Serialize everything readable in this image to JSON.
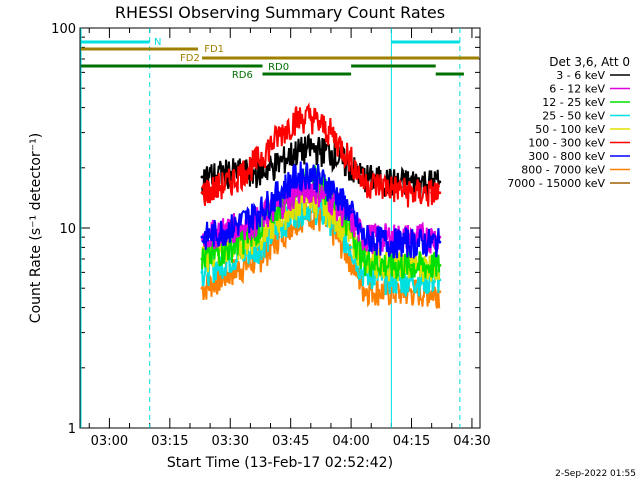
{
  "footer_date": "2-Sep-2022 01:55",
  "legend": {
    "header": "Det 3,6, Att 0",
    "entries": [
      {
        "label": "3 - 6 keV",
        "color": "#000000"
      },
      {
        "label": "6 - 12 keV",
        "color": "#e000e0"
      },
      {
        "label": "12 - 25 keV",
        "color": "#00e000"
      },
      {
        "label": "25 - 50 keV",
        "color": "#00e0e0"
      },
      {
        "label": "50 - 100 keV",
        "color": "#e0e000"
      },
      {
        "label": "100 - 300 keV",
        "color": "#ff0000"
      },
      {
        "label": "300 - 800 keV",
        "color": "#0000ff"
      },
      {
        "label": "800 - 7000 keV",
        "color": "#ff8000"
      },
      {
        "label": "7000 - 15000 keV",
        "color": "#a06000"
      }
    ]
  },
  "chart_data": {
    "type": "line",
    "title": "RHESSI Observing Summary Count Rates",
    "xlabel": "Start Time (13-Feb-17 02:52:42)",
    "ylabel": "Count Rate (s⁻¹ detector⁻¹)",
    "yscale": "log",
    "ylim": [
      1,
      100
    ],
    "xlim": [
      "02:52:42",
      "04:32"
    ],
    "y_ticks": [
      "1",
      "10",
      "100"
    ],
    "x_ticks": [
      "03:00",
      "03:15",
      "03:30",
      "03:45",
      "04:00",
      "04:15",
      "04:30"
    ],
    "grid": false,
    "legend_position": "right",
    "series": [
      {
        "name": "3 - 6 keV",
        "color": "#000000",
        "x": [
          "03:23",
          "03:30",
          "03:37",
          "03:42",
          "03:46",
          "03:50",
          "03:55",
          "04:00",
          "04:03",
          "04:10",
          "04:15",
          "04:20",
          "04:22"
        ],
        "values": [
          18,
          19,
          19,
          21,
          24,
          25,
          24,
          20,
          18,
          17,
          17,
          17,
          17
        ]
      },
      {
        "name": "6 - 12 keV",
        "color": "#e000e0",
        "x": [
          "03:23",
          "03:30",
          "03:37",
          "03:42",
          "03:46",
          "03:50",
          "03:55",
          "04:00",
          "04:03",
          "04:10",
          "04:15",
          "04:20",
          "04:22"
        ],
        "values": [
          9,
          10,
          11,
          13,
          15,
          16,
          14,
          11,
          9,
          9,
          9,
          9,
          9
        ]
      },
      {
        "name": "12 - 25 keV",
        "color": "#00e000",
        "x": [
          "03:23",
          "03:30",
          "03:37",
          "03:42",
          "03:46",
          "03:50",
          "03:55",
          "04:00",
          "04:03",
          "04:10",
          "04:15",
          "04:20",
          "04:22"
        ],
        "values": [
          7,
          8,
          10,
          13,
          16,
          18,
          15,
          10,
          7,
          6.5,
          6.5,
          6.5,
          6.5
        ]
      },
      {
        "name": "25 - 50 keV",
        "color": "#00e0e0",
        "x": [
          "03:23",
          "03:30",
          "03:37",
          "03:42",
          "03:46",
          "03:50",
          "03:55",
          "04:00",
          "04:03",
          "04:10",
          "04:15",
          "04:20",
          "04:22"
        ],
        "values": [
          6,
          7,
          8,
          10,
          12,
          13,
          11,
          8,
          6,
          5.5,
          5.5,
          5.5,
          5.5
        ]
      },
      {
        "name": "50 - 100 keV",
        "color": "#e0e000",
        "x": [
          "03:23",
          "03:30",
          "03:37",
          "03:42",
          "03:46",
          "03:50",
          "03:55",
          "04:00",
          "04:03",
          "04:10",
          "04:15",
          "04:20",
          "04:22"
        ],
        "values": [
          7,
          8,
          9,
          11,
          13,
          14,
          12,
          9,
          7,
          6.5,
          6.5,
          6.5,
          6.5
        ]
      },
      {
        "name": "100 - 300 keV",
        "color": "#ff0000",
        "x": [
          "03:23",
          "03:30",
          "03:37",
          "03:42",
          "03:46",
          "03:50",
          "03:55",
          "04:00",
          "04:03",
          "04:10",
          "04:15",
          "04:20",
          "04:22"
        ],
        "values": [
          15,
          17,
          22,
          29,
          35,
          36,
          30,
          22,
          17,
          16,
          15,
          15,
          15
        ]
      },
      {
        "name": "300 - 800 keV",
        "color": "#0000ff",
        "x": [
          "03:23",
          "03:30",
          "03:37",
          "03:42",
          "03:46",
          "03:50",
          "03:55",
          "04:00",
          "04:03",
          "04:10",
          "04:15",
          "04:20",
          "04:22"
        ],
        "values": [
          9,
          10,
          12,
          15,
          18,
          19,
          16,
          12,
          9,
          8.5,
          8.5,
          8.5,
          8.5
        ]
      },
      {
        "name": "800 - 7000 keV",
        "color": "#ff8000",
        "x": [
          "03:23",
          "03:30",
          "03:37",
          "03:42",
          "03:46",
          "03:50",
          "03:55",
          "04:00",
          "04:03",
          "04:10",
          "04:15",
          "04:20",
          "04:22"
        ],
        "values": [
          5,
          6,
          7,
          9,
          11,
          12,
          10,
          7,
          5,
          4.8,
          4.8,
          4.8,
          4.8
        ]
      }
    ],
    "annotations": [
      {
        "label": "N",
        "color": "#00e0e0",
        "segments": [
          [
            "02:52:42",
            "03:10"
          ],
          [
            "04:10",
            "04:27"
          ]
        ]
      },
      {
        "label": "FD1",
        "color": "#a08000",
        "segments": [
          [
            "02:52:42",
            "03:22"
          ]
        ]
      },
      {
        "label": "FD2",
        "color": "#a08000",
        "segments": [
          [
            "03:23",
            "04:32"
          ]
        ]
      },
      {
        "label": "RD0",
        "color": "#007000",
        "segments": [
          [
            "02:52:42",
            "03:38"
          ],
          [
            "04:00",
            "04:21"
          ]
        ]
      },
      {
        "label": "RD6",
        "color": "#007000",
        "segments": [
          [
            "03:38",
            "04:00"
          ],
          [
            "04:21",
            "04:28"
          ]
        ]
      }
    ],
    "vertical_markers": [
      {
        "time": "02:52:42",
        "style": "solid",
        "color": "#00e0e0"
      },
      {
        "time": "03:10",
        "style": "dashed",
        "color": "#00e0e0"
      },
      {
        "time": "04:10",
        "style": "solid",
        "color": "#00e0e0"
      },
      {
        "time": "04:27",
        "style": "dashed",
        "color": "#00e0e0"
      }
    ]
  }
}
